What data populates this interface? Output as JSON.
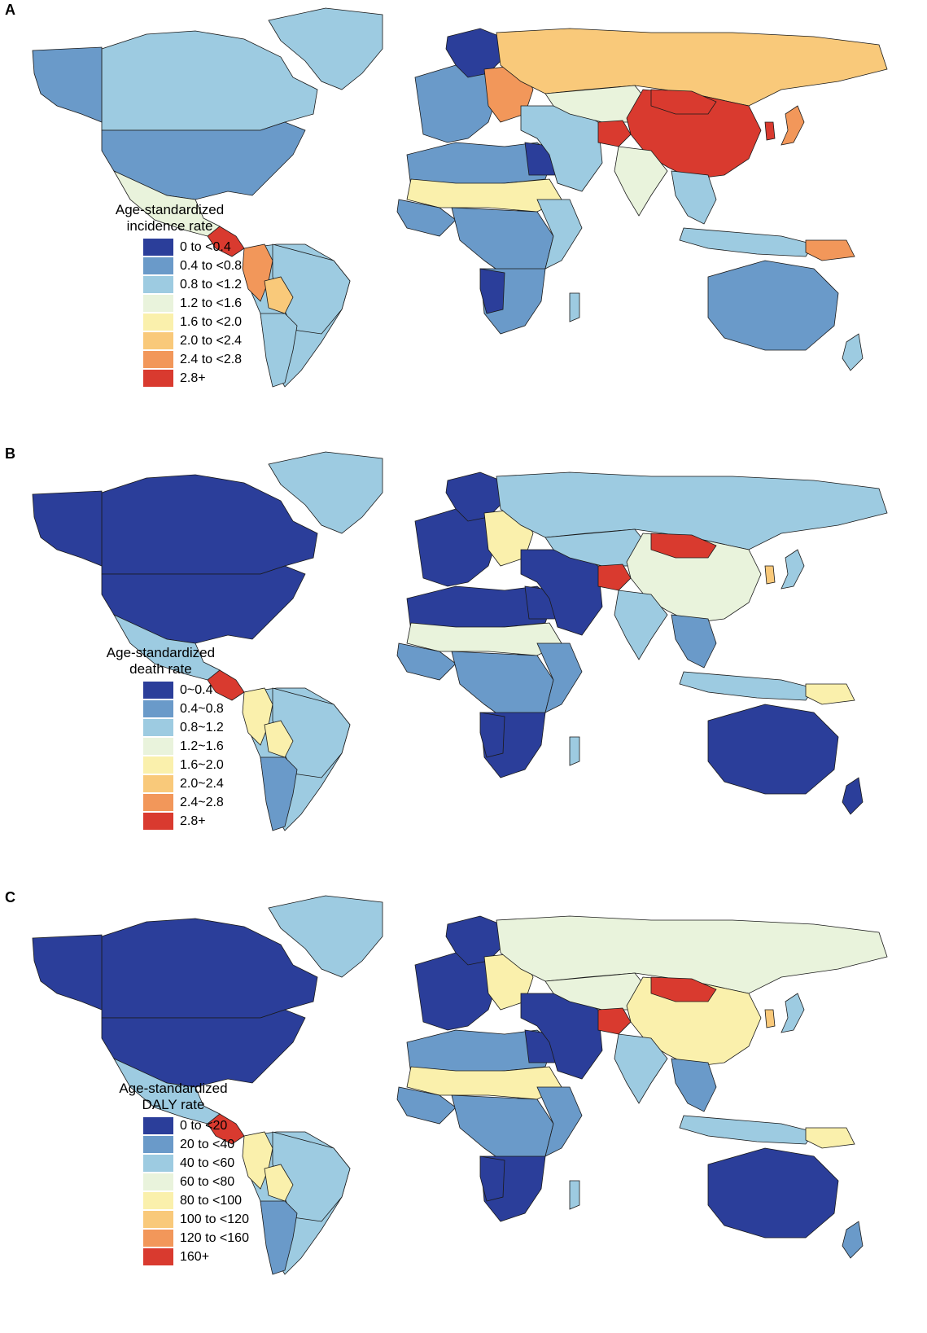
{
  "colors": [
    "#2b3e9a",
    "#6a9ac9",
    "#9dcbe1",
    "#e9f3dc",
    "#faf0ac",
    "#f9c97a",
    "#f2975a",
    "#d93a2f"
  ],
  "panels": [
    {
      "letter": "A",
      "legend_title": [
        "Age-standardized",
        "incidence rate"
      ],
      "legend_items": [
        "0 to <0.4",
        "0.4 to <0.8",
        "0.8 to <1.2",
        "1.2 to <1.6",
        "1.6 to <2.0",
        "2.0 to <2.4",
        "2.4 to <2.8",
        "2.8+"
      ],
      "regions": {
        "north_america": 1,
        "alaska": 1,
        "canada": 2,
        "usa": 1,
        "greenland": 2,
        "mexico": 3,
        "central_america": 7,
        "south_america": 2,
        "andes": 6,
        "brazil": 2,
        "bolivia": 5,
        "southern_cone": 2,
        "europe_west": 1,
        "scandinavia": 0,
        "eastern_europe": 6,
        "russia": 5,
        "north_africa": 1,
        "egypt": 0,
        "sahel": 4,
        "west_africa": 1,
        "central_africa": 1,
        "east_africa": 2,
        "southern_africa": 1,
        "namibia": 0,
        "middle_east": 2,
        "central_asia": 3,
        "afghanistan": 7,
        "china": 7,
        "mongolia": 7,
        "japan": 6,
        "korea": 7,
        "india": 3,
        "southeast_asia": 2,
        "indonesia": 2,
        "png": 6,
        "australia": 1,
        "new_zealand": 2,
        "madagascar": 2
      }
    },
    {
      "letter": "B",
      "legend_title": [
        "Age-standardized",
        "death rate"
      ],
      "legend_items": [
        "0~0.4",
        "0.4~0.8",
        "0.8~1.2",
        "1.2~1.6",
        "1.6~2.0",
        "2.0~2.4",
        "2.4~2.8",
        "2.8+"
      ],
      "regions": {
        "north_america": 0,
        "alaska": 0,
        "canada": 0,
        "usa": 0,
        "greenland": 2,
        "mexico": 2,
        "central_america": 7,
        "south_america": 2,
        "andes": 4,
        "brazil": 2,
        "bolivia": 4,
        "southern_cone": 1,
        "europe_west": 0,
        "scandinavia": 0,
        "eastern_europe": 4,
        "russia": 2,
        "north_africa": 0,
        "egypt": 0,
        "sahel": 3,
        "west_africa": 1,
        "central_africa": 1,
        "east_africa": 1,
        "southern_africa": 0,
        "namibia": 0,
        "middle_east": 0,
        "central_asia": 2,
        "afghanistan": 7,
        "china": 3,
        "mongolia": 7,
        "japan": 2,
        "korea": 5,
        "india": 2,
        "southeast_asia": 1,
        "indonesia": 2,
        "png": 4,
        "australia": 0,
        "new_zealand": 0,
        "madagascar": 2
      }
    },
    {
      "letter": "C",
      "legend_title": [
        "Age-standardized",
        "DALY rate"
      ],
      "legend_items": [
        "0 to <20",
        "20 to <40",
        "40 to <60",
        "60 to <80",
        "80 to <100",
        "100 to <120",
        "120 to <160",
        "160+"
      ],
      "regions": {
        "north_america": 0,
        "alaska": 0,
        "canada": 0,
        "usa": 0,
        "greenland": 2,
        "mexico": 2,
        "central_america": 7,
        "south_america": 2,
        "andes": 4,
        "brazil": 2,
        "bolivia": 4,
        "southern_cone": 1,
        "europe_west": 0,
        "scandinavia": 0,
        "eastern_europe": 4,
        "russia": 3,
        "north_africa": 1,
        "egypt": 0,
        "sahel": 4,
        "west_africa": 1,
        "central_africa": 1,
        "east_africa": 1,
        "southern_africa": 0,
        "namibia": 0,
        "middle_east": 0,
        "central_asia": 3,
        "afghanistan": 7,
        "china": 4,
        "mongolia": 7,
        "japan": 2,
        "korea": 5,
        "india": 2,
        "southeast_asia": 1,
        "indonesia": 2,
        "png": 4,
        "australia": 0,
        "new_zealand": 1,
        "madagascar": 2
      }
    }
  ]
}
